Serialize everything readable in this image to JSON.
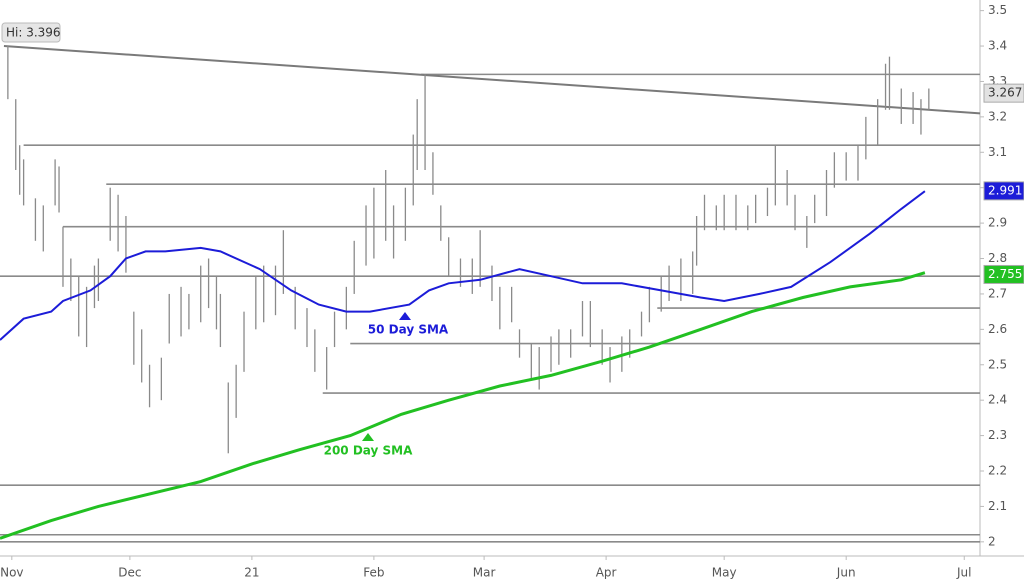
{
  "chart_data": {
    "type": "ohlc",
    "hi_label": "Hi: 3.396",
    "color": "#8a8a8a",
    "xlim": [
      -3,
      246
    ],
    "ylim": [
      1.96,
      3.53
    ],
    "xticks": [
      {
        "value": 0,
        "label": "Nov"
      },
      {
        "value": 30,
        "label": "Dec"
      },
      {
        "value": 61,
        "label": "21"
      },
      {
        "value": 92,
        "label": "Feb"
      },
      {
        "value": 120,
        "label": "Mar"
      },
      {
        "value": 151,
        "label": "Apr"
      },
      {
        "value": 181,
        "label": "May"
      },
      {
        "value": 212,
        "label": "Jun"
      },
      {
        "value": 242,
        "label": "Jul"
      }
    ],
    "yticks": [
      2,
      2.1,
      2.2,
      2.3,
      2.4,
      2.5,
      2.6,
      2.7,
      2.8,
      2.9,
      3,
      3.1,
      3.2,
      3.3,
      3.4,
      3.5
    ],
    "x": [
      -1,
      1,
      2,
      3,
      6,
      8,
      11,
      12,
      13,
      15,
      17,
      19,
      21,
      22,
      25,
      27,
      29,
      31,
      33,
      35,
      38,
      40,
      43,
      45,
      48,
      50,
      52,
      53,
      55,
      57,
      59,
      62,
      64,
      67,
      69,
      72,
      75,
      77,
      80,
      82,
      85,
      87,
      90,
      92,
      95,
      97,
      100,
      102,
      103,
      105,
      107,
      109,
      111,
      114,
      117,
      119,
      122,
      124,
      127,
      129,
      132,
      134,
      137,
      139,
      142,
      145,
      147,
      150,
      152,
      155,
      157,
      160,
      162,
      165,
      167,
      170,
      173,
      174,
      176,
      179,
      181,
      184,
      187,
      189,
      192,
      194,
      197,
      199,
      202,
      204,
      207,
      209,
      212,
      215,
      217,
      220,
      222,
      223,
      226,
      229,
      231,
      233
    ],
    "high": [
      3.4,
      3.25,
      3.12,
      3.08,
      2.97,
      2.95,
      3.08,
      3.06,
      2.89,
      2.8,
      2.75,
      2.72,
      2.78,
      2.8,
      3.0,
      2.98,
      2.92,
      2.65,
      2.6,
      2.5,
      2.52,
      2.7,
      2.72,
      2.7,
      2.78,
      2.8,
      2.75,
      2.7,
      2.45,
      2.5,
      2.65,
      2.75,
      2.78,
      2.78,
      2.88,
      2.72,
      2.66,
      2.6,
      2.55,
      2.65,
      2.72,
      2.85,
      2.95,
      3.0,
      3.05,
      2.95,
      3.0,
      3.15,
      3.25,
      3.32,
      3.1,
      2.95,
      2.86,
      2.8,
      2.8,
      2.88,
      2.78,
      2.72,
      2.72,
      2.6,
      2.56,
      2.55,
      2.58,
      2.6,
      2.6,
      2.68,
      2.68,
      2.6,
      2.55,
      2.58,
      2.6,
      2.65,
      2.72,
      2.75,
      2.78,
      2.8,
      2.82,
      2.92,
      2.98,
      2.95,
      2.98,
      2.98,
      2.95,
      2.98,
      3.0,
      3.12,
      3.05,
      2.98,
      2.92,
      2.98,
      3.05,
      3.1,
      3.1,
      3.12,
      3.2,
      3.25,
      3.35,
      3.37,
      3.28,
      3.27,
      3.25,
      3.28
    ],
    "low": [
      3.25,
      3.05,
      2.98,
      2.95,
      2.85,
      2.82,
      2.95,
      2.93,
      2.72,
      2.68,
      2.58,
      2.55,
      2.66,
      2.68,
      2.85,
      2.82,
      2.76,
      2.5,
      2.45,
      2.38,
      2.4,
      2.56,
      2.58,
      2.6,
      2.62,
      2.66,
      2.6,
      2.55,
      2.25,
      2.35,
      2.48,
      2.6,
      2.62,
      2.64,
      2.7,
      2.6,
      2.55,
      2.48,
      2.43,
      2.55,
      2.6,
      2.7,
      2.78,
      2.8,
      2.85,
      2.8,
      2.85,
      2.95,
      3.05,
      3.05,
      2.98,
      2.85,
      2.75,
      2.72,
      2.7,
      2.72,
      2.68,
      2.6,
      2.62,
      2.52,
      2.46,
      2.43,
      2.48,
      2.5,
      2.52,
      2.58,
      2.55,
      2.5,
      2.45,
      2.48,
      2.52,
      2.58,
      2.62,
      2.65,
      2.68,
      2.68,
      2.7,
      2.78,
      2.88,
      2.88,
      2.88,
      2.88,
      2.88,
      2.9,
      2.92,
      2.95,
      2.95,
      2.88,
      2.83,
      2.9,
      2.92,
      3.0,
      3.02,
      3.02,
      3.08,
      3.12,
      3.22,
      3.22,
      3.18,
      3.18,
      3.15,
      3.22
    ],
    "series": [
      {
        "name": "50 Day SMA",
        "color": "#1c1cd8",
        "x": [
          -3,
          3,
          10,
          13,
          20,
          25,
          29,
          34,
          39,
          48,
          53,
          63,
          71,
          78,
          85,
          91,
          101,
          106,
          111,
          119,
          129,
          137,
          145,
          155,
          165,
          175,
          181,
          190,
          198,
          208,
          218,
          226,
          232
        ],
        "values": [
          2.57,
          2.63,
          2.65,
          2.68,
          2.71,
          2.75,
          2.8,
          2.82,
          2.82,
          2.83,
          2.82,
          2.77,
          2.71,
          2.67,
          2.65,
          2.65,
          2.67,
          2.71,
          2.73,
          2.74,
          2.77,
          2.75,
          2.73,
          2.73,
          2.71,
          2.69,
          2.68,
          2.7,
          2.72,
          2.79,
          2.87,
          2.94,
          2.99
        ]
      },
      {
        "name": "200 Day SMA",
        "color": "#22c022",
        "x": [
          -3,
          10,
          22,
          48,
          61,
          73,
          86,
          99,
          111,
          124,
          137,
          150,
          162,
          175,
          188,
          201,
          213,
          226,
          232
        ],
        "values": [
          2.01,
          2.06,
          2.1,
          2.17,
          2.22,
          2.26,
          2.3,
          2.36,
          2.4,
          2.44,
          2.47,
          2.51,
          2.55,
          2.6,
          2.65,
          2.69,
          2.72,
          2.74,
          2.76
        ]
      }
    ],
    "levels": [
      {
        "value": 3.32,
        "from": 104
      },
      {
        "value": 3.12,
        "from": 3
      },
      {
        "value": 3.01,
        "from": 24
      },
      {
        "value": 2.89,
        "from": 13
      },
      {
        "value": 2.75,
        "from": -3
      },
      {
        "value": 2.66,
        "from": 164
      },
      {
        "value": 2.56,
        "from": 86
      },
      {
        "value": 2.42,
        "from": 79
      },
      {
        "value": 2.16,
        "from": -3
      },
      {
        "value": 2.02,
        "from": -3
      },
      {
        "value": 2.0,
        "from": -3
      }
    ],
    "trendline": {
      "x": [
        -2,
        246
      ],
      "values": [
        3.4,
        3.21
      ]
    },
    "price_labels": [
      {
        "price": 3.267,
        "color": "#e2e2e2",
        "text_color": "#333333"
      },
      {
        "price": 2.991,
        "color": "#1c1cd8",
        "text_color": "#ffffff"
      },
      {
        "price": 2.755,
        "color": "#22c022",
        "text_color": "#ffffff"
      }
    ]
  }
}
